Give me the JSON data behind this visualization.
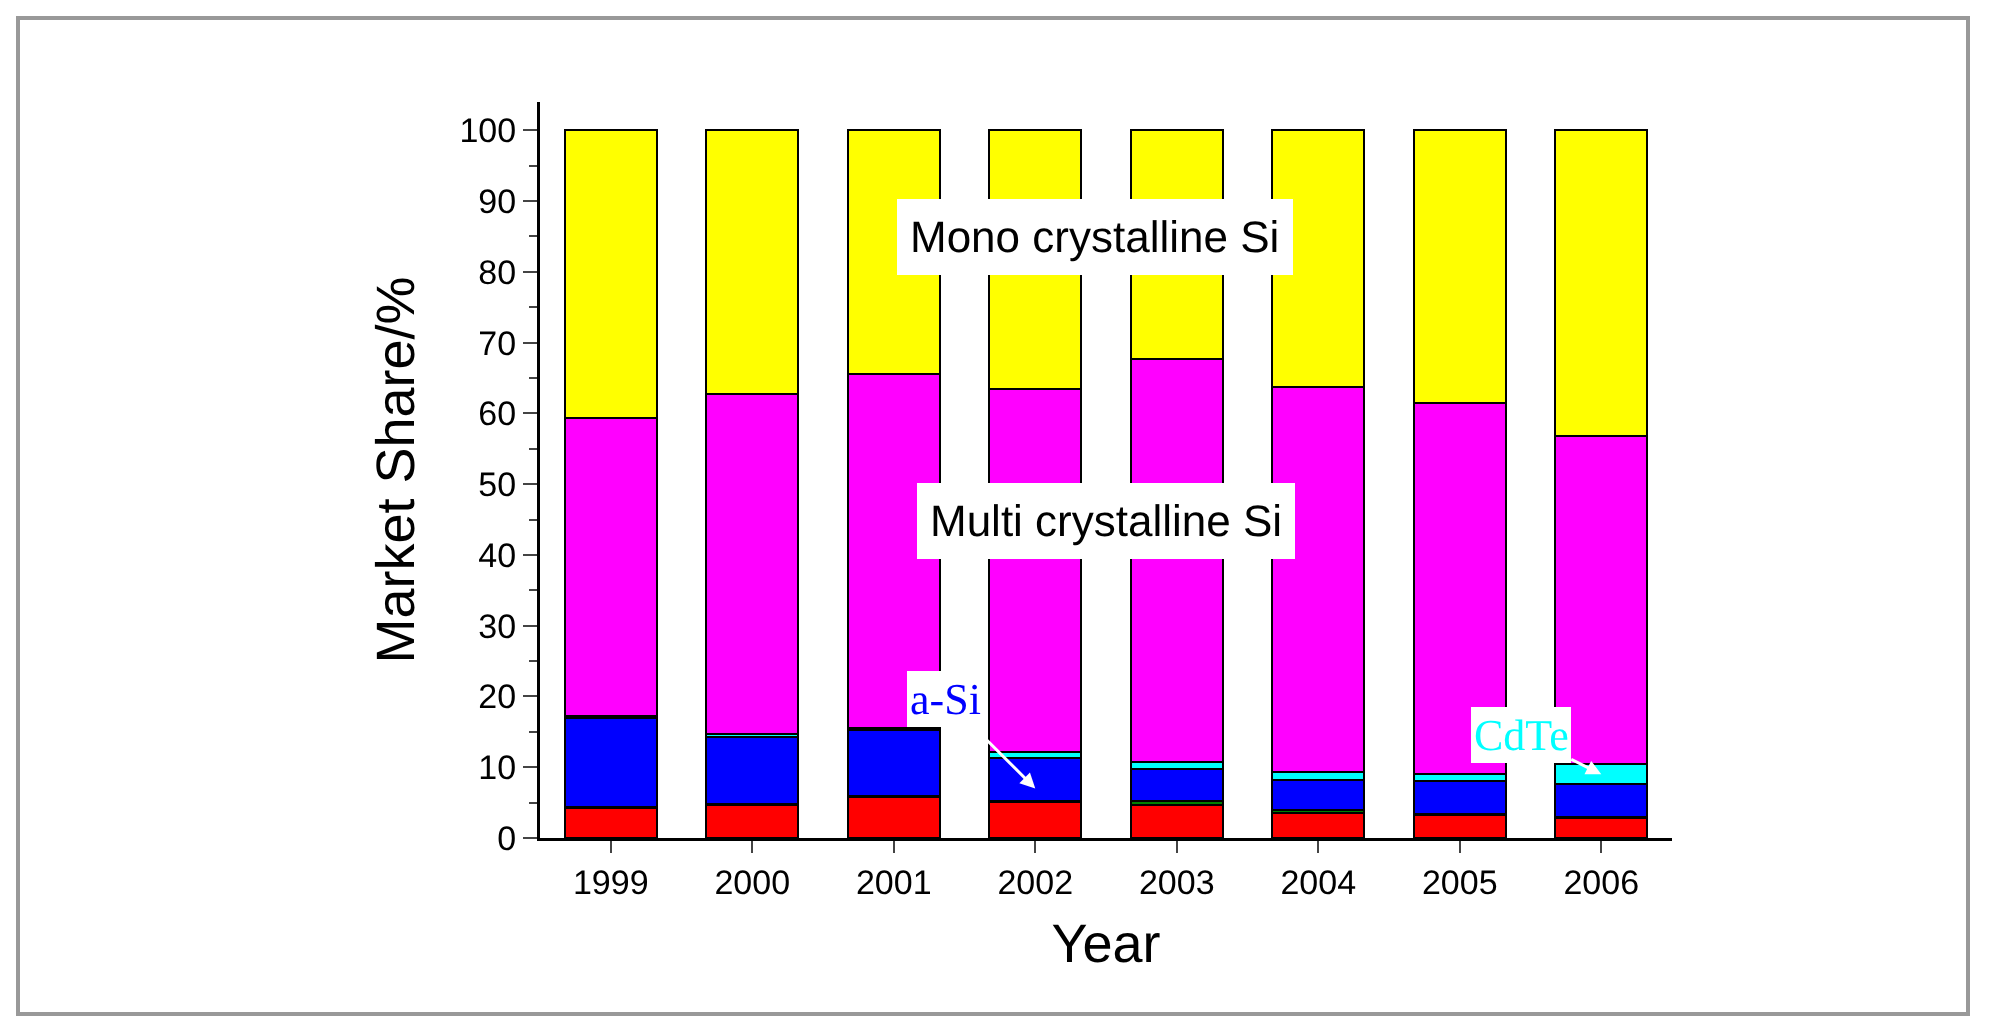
{
  "chart_data": {
    "type": "bar",
    "stacked": true,
    "xlabel": "Year",
    "ylabel": "Market Share/%",
    "categories": [
      "1999",
      "2000",
      "2001",
      "2002",
      "2003",
      "2004",
      "2005",
      "2006"
    ],
    "series": [
      {
        "color": "#ff0000",
        "values": [
          4.2,
          4.6,
          5.8,
          5.1,
          4.6,
          3.5,
          3.2,
          2.8
        ]
      },
      {
        "color": "#008000",
        "values": [
          0.2,
          0.2,
          0.2,
          0.2,
          0.6,
          0.5,
          0.2,
          0.2
        ]
      },
      {
        "color": "#0000ff",
        "values": [
          12.5,
          9.5,
          9.2,
          6.0,
          4.6,
          4.2,
          4.6,
          4.7
        ]
      },
      {
        "color": "#00ffff",
        "values": [
          0.4,
          0.4,
          0.3,
          0.8,
          0.9,
          1.1,
          1.1,
          2.8
        ]
      },
      {
        "color": "#ff00ff",
        "values": [
          42.0,
          48.0,
          50.0,
          51.4,
          57.0,
          54.5,
          52.4,
          46.3
        ]
      },
      {
        "color": "#ffff00",
        "values": [
          40.7,
          37.3,
          34.5,
          36.5,
          32.3,
          36.2,
          38.5,
          43.2
        ]
      }
    ],
    "ylim": [
      0,
      104
    ],
    "yticks": [
      0,
      10,
      20,
      30,
      40,
      50,
      60,
      70,
      80,
      90,
      100
    ],
    "grid": false,
    "annotations": [
      "Mono crystalline Si",
      "Multi crystalline Si",
      "a-Si",
      "CdTe"
    ]
  }
}
